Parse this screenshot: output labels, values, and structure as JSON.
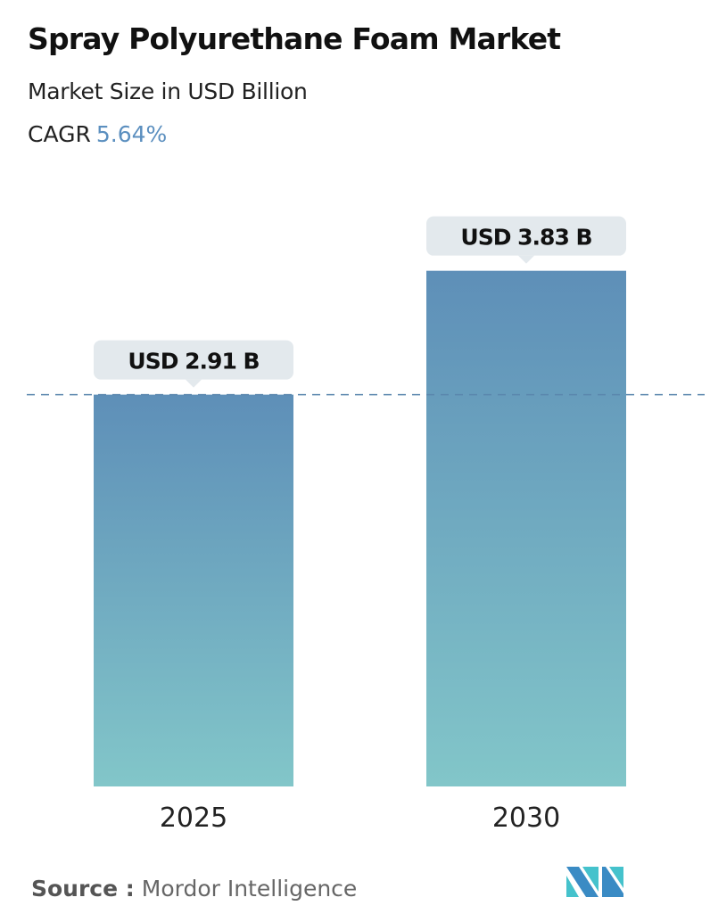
{
  "header": {
    "title": "Spray Polyurethane Foam Market",
    "subtitle": "Market Size in USD Billion",
    "cagr_label": "CAGR",
    "cagr_value": "5.64%"
  },
  "chart_data": {
    "type": "bar",
    "categories": [
      "2025",
      "2030"
    ],
    "values": [
      2.91,
      3.83
    ],
    "data_labels": [
      "USD 2.91 B",
      "USD 3.83 B"
    ],
    "unit": "USD Billion",
    "reference_line": {
      "value": 2.91,
      "style": "dashed"
    },
    "colors": {
      "bar_top": "#5e8fb8",
      "bar_bottom": "#82c6c9",
      "label_bg": "#e3e9ed",
      "reference_line": "#5a86ad"
    },
    "grid": false
  },
  "footer": {
    "source_label": "Source :",
    "source_value": "Mordor Intelligence",
    "logo": "mordor-intelligence-logo"
  }
}
